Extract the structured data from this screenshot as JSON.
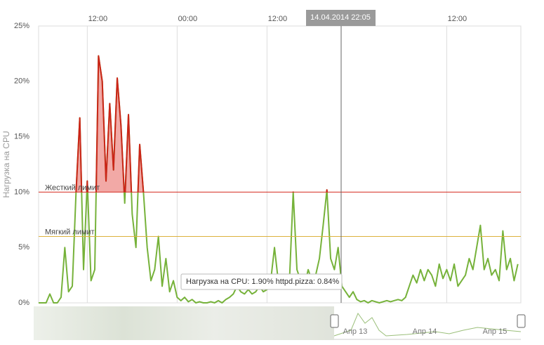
{
  "chart_data": {
    "type": "line",
    "y_label": "Нагрузка на CPU",
    "xlim": [
      0,
      64.4
    ],
    "xticks": [
      {
        "value": 6.5,
        "label": "12:00"
      },
      {
        "value": 18.5,
        "label": "00:00"
      },
      {
        "value": 30.5,
        "label": "12:00"
      },
      {
        "value": 54.5,
        "label": "12:00"
      }
    ],
    "ylim": [
      0,
      25
    ],
    "yticks": [
      {
        "value": 0,
        "label": "0%"
      },
      {
        "value": 5,
        "label": "5%"
      },
      {
        "value": 10,
        "label": "10%"
      },
      {
        "value": 15,
        "label": "15%"
      },
      {
        "value": 20,
        "label": "20%"
      },
      {
        "value": 25,
        "label": "25%"
      }
    ],
    "grid": true,
    "limits": [
      {
        "name": "Жесткий лимит",
        "value": 10,
        "color": "#d42a1f"
      },
      {
        "name": "Мягкий лимит",
        "value": 6,
        "color": "#dcb13c"
      }
    ],
    "over_limit_color": "#cc2418",
    "over_limit_fill": "#f2a9a6",
    "x": [
      0,
      0.5,
      1,
      1.5,
      2,
      2.5,
      3,
      3.5,
      4,
      4.5,
      5,
      5.5,
      6,
      6.5,
      7,
      7.5,
      8,
      8.5,
      9,
      9.5,
      10,
      10.5,
      11,
      11.5,
      12,
      12.5,
      13,
      13.5,
      14,
      14.5,
      15,
      15.5,
      16,
      16.5,
      17,
      17.5,
      18,
      18.5,
      19,
      19.5,
      20,
      20.5,
      21,
      21.5,
      22,
      22.5,
      23,
      23.5,
      24,
      24.5,
      25,
      25.5,
      26,
      26.5,
      27,
      27.5,
      28,
      28.5,
      29,
      29.5,
      30,
      30.5,
      31,
      31.5,
      32,
      32.5,
      33,
      33.5,
      34,
      34.5,
      35,
      35.5,
      36,
      36.5,
      37,
      37.5,
      38,
      38.5,
      39,
      39.5,
      40,
      40.5,
      41,
      41.5,
      42,
      42.5,
      43,
      43.5,
      44,
      44.5,
      45,
      45.5,
      46,
      46.5,
      47,
      47.5,
      48,
      48.5,
      49,
      49.5,
      50,
      50.5,
      51,
      51.5,
      52,
      52.5,
      53,
      53.5,
      54,
      54.5,
      55,
      55.5,
      56,
      56.5,
      57,
      57.5,
      58,
      58.5,
      59,
      59.5,
      60,
      60.5,
      61,
      61.5,
      62,
      62.5,
      63,
      63.5,
      64
    ],
    "series": [
      {
        "color": "#76b23a",
        "values": [
          0,
          0,
          0,
          0.8,
          0,
          0,
          0.5,
          5,
          1,
          1.5,
          10,
          16.7,
          3,
          11,
          2,
          3,
          22.3,
          20,
          11,
          18,
          12,
          20.3,
          16,
          9,
          17,
          8,
          5,
          14.3,
          10,
          5,
          2,
          3,
          6,
          1.5,
          4,
          1,
          2,
          0.5,
          0.2,
          0.5,
          0.1,
          0.3,
          0,
          0.1,
          0,
          0,
          0.1,
          0,
          0.2,
          0,
          0.3,
          0.5,
          0.8,
          1.5,
          1,
          0.8,
          1.2,
          0.8,
          1,
          1.5,
          1,
          1.2,
          2,
          5,
          2,
          1.5,
          2.5,
          2,
          10,
          3,
          2,
          1.5,
          3,
          2,
          2.5,
          4,
          7,
          10.2,
          4,
          3,
          5,
          1.5,
          1,
          0.5,
          1,
          0.3,
          0.1,
          0.2,
          0,
          0.2,
          0.1,
          0,
          0.1,
          0.2,
          0.1,
          0.2,
          0.3,
          0.2,
          0.5,
          1.5,
          2.5,
          1.8,
          3,
          2,
          3,
          2.5,
          1.5,
          3.5,
          2.2,
          3,
          2,
          3.5,
          1.5,
          2,
          2.5,
          4,
          3,
          5,
          7,
          3,
          4,
          2.5,
          3,
          2,
          6.5,
          3,
          4,
          2,
          3.5
        ]
      }
    ],
    "cursor_label": "14.04.2014 22:05",
    "tooltip": "Нагрузка на CPU: 1.90% httpd.pizza: 0.84%",
    "navigator_labels": [
      "Апр 13",
      "Апр 14",
      "Апр 15"
    ]
  }
}
